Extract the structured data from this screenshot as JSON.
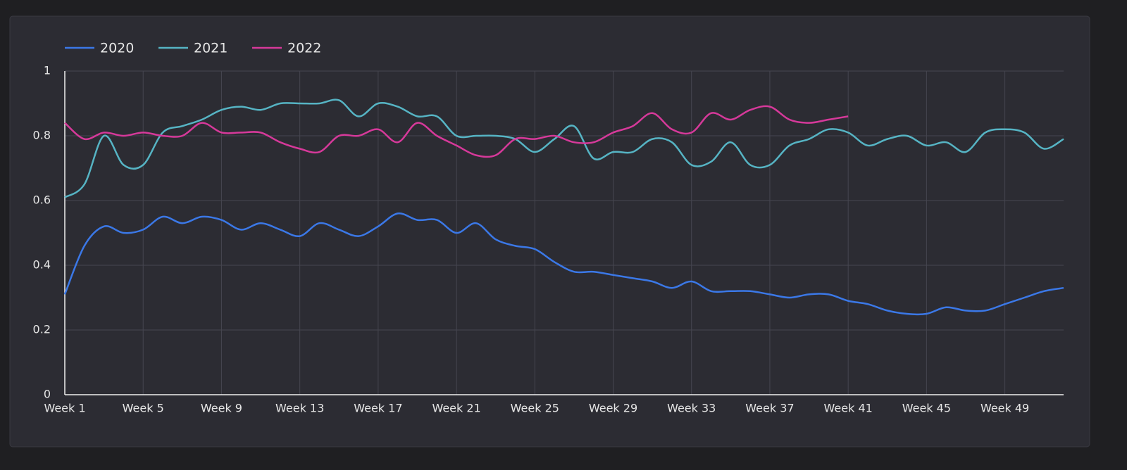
{
  "chart_data": {
    "type": "line",
    "categories": [
      "Week 1",
      null,
      null,
      null,
      "Week 5",
      null,
      null,
      null,
      "Week 9",
      null,
      null,
      null,
      "Week 13",
      null,
      null,
      null,
      "Week 17",
      null,
      null,
      null,
      "Week 21",
      null,
      null,
      null,
      "Week 25",
      null,
      null,
      null,
      "Week 29",
      null,
      null,
      null,
      "Week 33",
      null,
      null,
      null,
      "Week 37",
      null,
      null,
      null,
      "Week 41",
      null,
      null,
      null,
      "Week 45",
      null,
      null,
      null,
      "Week 49",
      null,
      null,
      null
    ],
    "series": [
      {
        "name": "2020",
        "color": "#3b78e7",
        "values": [
          0.31,
          0.46,
          0.52,
          0.5,
          0.51,
          0.55,
          0.53,
          0.55,
          0.54,
          0.51,
          0.53,
          0.51,
          0.49,
          0.53,
          0.51,
          0.49,
          0.52,
          0.56,
          0.54,
          0.54,
          0.5,
          0.53,
          0.48,
          0.46,
          0.45,
          0.41,
          0.38,
          0.38,
          0.37,
          0.36,
          0.35,
          0.33,
          0.35,
          0.32,
          0.32,
          0.32,
          0.31,
          0.3,
          0.31,
          0.31,
          0.29,
          0.28,
          0.26,
          0.25,
          0.25,
          0.27,
          0.26,
          0.26,
          0.28,
          0.3,
          0.32,
          0.33
        ]
      },
      {
        "name": "2021",
        "color": "#56b4c4",
        "values": [
          0.61,
          0.65,
          0.8,
          0.71,
          0.71,
          0.81,
          0.83,
          0.85,
          0.88,
          0.89,
          0.88,
          0.9,
          0.9,
          0.9,
          0.91,
          0.86,
          0.9,
          0.89,
          0.86,
          0.86,
          0.8,
          0.8,
          0.8,
          0.79,
          0.75,
          0.79,
          0.83,
          0.73,
          0.75,
          0.75,
          0.79,
          0.78,
          0.71,
          0.72,
          0.78,
          0.71,
          0.71,
          0.77,
          0.79,
          0.82,
          0.81,
          0.77,
          0.79,
          0.8,
          0.77,
          0.78,
          0.75,
          0.81,
          0.82,
          0.81,
          0.76,
          0.79
        ]
      },
      {
        "name": "2022",
        "color": "#d6399a",
        "values": [
          0.84,
          0.79,
          0.81,
          0.8,
          0.81,
          0.8,
          0.8,
          0.84,
          0.81,
          0.81,
          0.81,
          0.78,
          0.76,
          0.75,
          0.8,
          0.8,
          0.82,
          0.78,
          0.84,
          0.8,
          0.77,
          0.74,
          0.74,
          0.79,
          0.79,
          0.8,
          0.78,
          0.78,
          0.81,
          0.83,
          0.87,
          0.82,
          0.81,
          0.87,
          0.85,
          0.88,
          0.89,
          0.85,
          0.84,
          0.85,
          0.86,
          null,
          null,
          null,
          null,
          null,
          null,
          null,
          null,
          null,
          null,
          null
        ]
      }
    ],
    "ylim": [
      0,
      1
    ],
    "yticks": [
      0,
      0.2,
      0.4,
      0.6,
      0.8,
      1
    ],
    "grid": true,
    "legend": "top-left"
  }
}
